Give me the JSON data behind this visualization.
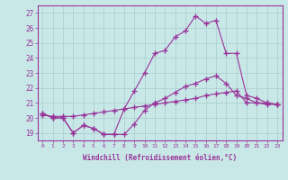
{
  "xlabel": "Windchill (Refroidissement éolien,°C)",
  "background_color": "#c8e8e8",
  "line_color": "#993399",
  "grid_color": "#aacccc",
  "xlim": [
    -0.5,
    23.5
  ],
  "ylim": [
    18.5,
    27.5
  ],
  "yticks": [
    19,
    20,
    21,
    22,
    23,
    24,
    25,
    26,
    27
  ],
  "xticks": [
    0,
    1,
    2,
    3,
    4,
    5,
    6,
    7,
    8,
    9,
    10,
    11,
    12,
    13,
    14,
    15,
    16,
    17,
    18,
    19,
    20,
    21,
    22,
    23
  ],
  "line1_x": [
    0,
    1,
    2,
    3,
    4,
    5,
    6,
    7,
    8,
    9,
    10,
    11,
    12,
    13,
    14,
    15,
    16,
    17,
    18,
    19,
    20,
    21,
    22,
    23
  ],
  "line1_y": [
    20.3,
    20.0,
    20.0,
    19.0,
    19.5,
    19.3,
    18.9,
    18.9,
    18.9,
    19.6,
    20.5,
    21.0,
    21.3,
    21.7,
    22.1,
    22.3,
    22.6,
    22.8,
    22.3,
    21.5,
    21.3,
    21.0,
    21.0,
    20.9
  ],
  "line2_x": [
    0,
    1,
    2,
    3,
    4,
    5,
    6,
    7,
    8,
    9,
    10,
    11,
    12,
    13,
    14,
    15,
    16,
    17,
    18,
    19,
    20,
    21,
    22,
    23
  ],
  "line2_y": [
    20.2,
    20.1,
    20.1,
    20.1,
    20.2,
    20.3,
    20.4,
    20.5,
    20.6,
    20.7,
    20.8,
    20.9,
    21.0,
    21.1,
    21.2,
    21.3,
    21.5,
    21.6,
    21.7,
    21.8,
    21.0,
    21.0,
    20.9,
    20.9
  ],
  "line3_x": [
    0,
    1,
    2,
    3,
    4,
    5,
    6,
    7,
    8,
    9,
    10,
    11,
    12,
    13,
    14,
    15,
    16,
    17,
    18,
    19,
    20,
    21,
    22,
    23
  ],
  "line3_y": [
    20.3,
    20.0,
    20.0,
    19.0,
    19.5,
    19.3,
    18.9,
    18.9,
    20.6,
    21.8,
    23.0,
    24.3,
    24.5,
    25.4,
    25.8,
    26.8,
    26.3,
    26.5,
    24.3,
    24.3,
    21.5,
    21.3,
    21.0,
    20.9
  ]
}
